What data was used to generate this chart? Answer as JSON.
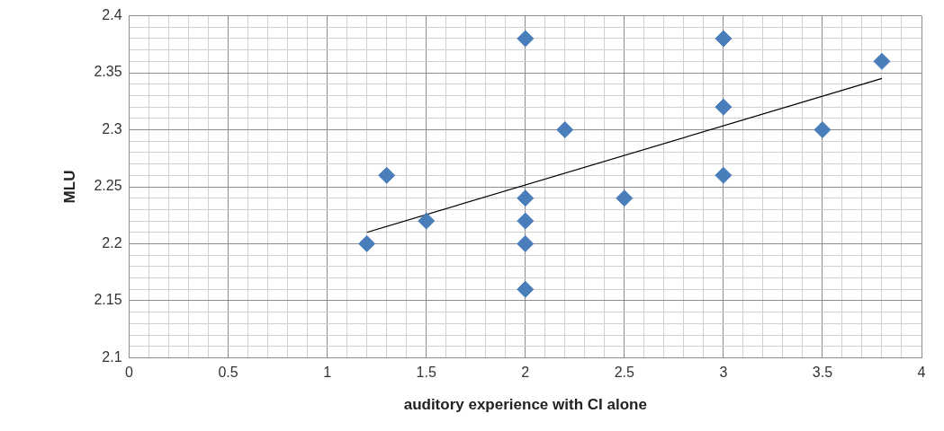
{
  "chart_data": {
    "type": "scatter",
    "xlabel": "auditory experience with CI alone",
    "ylabel": "MLU",
    "grid": true,
    "legend": false,
    "marker": "diamond",
    "xlim": [
      0,
      4
    ],
    "ylim": [
      2.1,
      2.4
    ],
    "xticks": [
      {
        "value": 0,
        "label": "0"
      },
      {
        "value": 0.1,
        "label": null
      },
      {
        "value": 0.2,
        "label": null
      },
      {
        "value": 0.3,
        "label": null
      },
      {
        "value": 0.4,
        "label": null
      },
      {
        "value": 0.5,
        "label": "0.5"
      },
      {
        "value": 0.6,
        "label": null
      },
      {
        "value": 0.7,
        "label": null
      },
      {
        "value": 0.8,
        "label": null
      },
      {
        "value": 0.9,
        "label": null
      },
      {
        "value": 1,
        "label": "1"
      },
      {
        "value": 1.1,
        "label": null
      },
      {
        "value": 1.2,
        "label": null
      },
      {
        "value": 1.3,
        "label": null
      },
      {
        "value": 1.4,
        "label": null
      },
      {
        "value": 1.5,
        "label": "1.5"
      },
      {
        "value": 1.6,
        "label": null
      },
      {
        "value": 1.7,
        "label": null
      },
      {
        "value": 1.8,
        "label": null
      },
      {
        "value": 1.9,
        "label": null
      },
      {
        "value": 2,
        "label": "2"
      },
      {
        "value": 2.1,
        "label": null
      },
      {
        "value": 2.2,
        "label": null
      },
      {
        "value": 2.3,
        "label": null
      },
      {
        "value": 2.4,
        "label": null
      },
      {
        "value": 2.5,
        "label": "2.5"
      },
      {
        "value": 2.6,
        "label": null
      },
      {
        "value": 2.7,
        "label": null
      },
      {
        "value": 2.8,
        "label": null
      },
      {
        "value": 2.9,
        "label": null
      },
      {
        "value": 3,
        "label": "3"
      },
      {
        "value": 3.1,
        "label": null
      },
      {
        "value": 3.2,
        "label": null
      },
      {
        "value": 3.3,
        "label": null
      },
      {
        "value": 3.4,
        "label": null
      },
      {
        "value": 3.5,
        "label": "3.5"
      },
      {
        "value": 3.6,
        "label": null
      },
      {
        "value": 3.7,
        "label": null
      },
      {
        "value": 3.8,
        "label": null
      },
      {
        "value": 3.9,
        "label": null
      },
      {
        "value": 4,
        "label": "4"
      }
    ],
    "yticks": [
      {
        "value": 2.1,
        "label": "2.1"
      },
      {
        "value": 2.11,
        "label": null
      },
      {
        "value": 2.12,
        "label": null
      },
      {
        "value": 2.13,
        "label": null
      },
      {
        "value": 2.14,
        "label": null
      },
      {
        "value": 2.15,
        "label": "2.15"
      },
      {
        "value": 2.16,
        "label": null
      },
      {
        "value": 2.17,
        "label": null
      },
      {
        "value": 2.18,
        "label": null
      },
      {
        "value": 2.19,
        "label": null
      },
      {
        "value": 2.2,
        "label": "2.2"
      },
      {
        "value": 2.21,
        "label": null
      },
      {
        "value": 2.22,
        "label": null
      },
      {
        "value": 2.23,
        "label": null
      },
      {
        "value": 2.24,
        "label": null
      },
      {
        "value": 2.25,
        "label": "2.25"
      },
      {
        "value": 2.26,
        "label": null
      },
      {
        "value": 2.27,
        "label": null
      },
      {
        "value": 2.28,
        "label": null
      },
      {
        "value": 2.29,
        "label": null
      },
      {
        "value": 2.3,
        "label": "2.3"
      },
      {
        "value": 2.31,
        "label": null
      },
      {
        "value": 2.32,
        "label": null
      },
      {
        "value": 2.33,
        "label": null
      },
      {
        "value": 2.34,
        "label": null
      },
      {
        "value": 2.35,
        "label": "2.35"
      },
      {
        "value": 2.36,
        "label": null
      },
      {
        "value": 2.37,
        "label": null
      },
      {
        "value": 2.38,
        "label": null
      },
      {
        "value": 2.39,
        "label": null
      },
      {
        "value": 2.4,
        "label": "2.4"
      }
    ],
    "series": [
      {
        "type": "scatter",
        "color": "#4a7ebb",
        "x": [
          1.2,
          1.3,
          1.5,
          2,
          2,
          2,
          2,
          2,
          2.2,
          2.5,
          3,
          3,
          3,
          3.5,
          3.8
        ],
        "values": [
          2.2,
          2.26,
          2.22,
          2.38,
          2.24,
          2.22,
          2.2,
          2.16,
          2.3,
          2.24,
          2.38,
          2.32,
          2.26,
          2.3,
          2.36
        ]
      },
      {
        "type": "line",
        "color": "#000000",
        "marker": "none",
        "x": [
          1.2,
          3.8
        ],
        "values": [
          2.21,
          2.345
        ]
      }
    ]
  }
}
